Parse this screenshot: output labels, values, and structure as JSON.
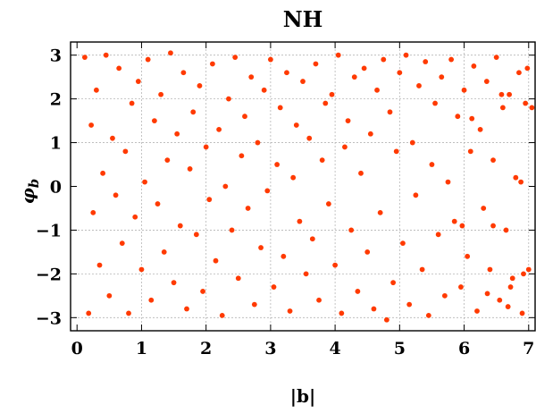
{
  "chart_data": {
    "type": "scatter",
    "title": "NH",
    "xlabel": "|b|",
    "ylabel": "φb",
    "ylabel_main": "φ",
    "ylabel_sub": "b",
    "xlim": [
      -0.1,
      7.1
    ],
    "ylim": [
      -3.3,
      3.3
    ],
    "xticks": [
      0,
      1,
      2,
      3,
      4,
      5,
      6,
      7
    ],
    "yticks": [
      -3,
      -2,
      -1,
      0,
      1,
      2,
      3
    ],
    "xtick_labels": [
      "0",
      "1",
      "2",
      "3",
      "4",
      "5",
      "6",
      "7"
    ],
    "ytick_labels": [
      "−3",
      "−2",
      "−1",
      "0",
      "1",
      "2",
      "3"
    ],
    "grid": true,
    "marker_color": "#ff3a00",
    "series": [
      {
        "points": [
          [
            0.12,
            2.95
          ],
          [
            0.18,
            -2.9
          ],
          [
            0.22,
            1.4
          ],
          [
            0.25,
            -0.6
          ],
          [
            0.3,
            2.2
          ],
          [
            0.35,
            -1.8
          ],
          [
            0.4,
            0.3
          ],
          [
            0.45,
            3.0
          ],
          [
            0.5,
            -2.5
          ],
          [
            0.55,
            1.1
          ],
          [
            0.6,
            -0.2
          ],
          [
            0.65,
            2.7
          ],
          [
            0.7,
            -1.3
          ],
          [
            0.75,
            0.8
          ],
          [
            0.8,
            -2.9
          ],
          [
            0.85,
            1.9
          ],
          [
            0.9,
            -0.7
          ],
          [
            0.95,
            2.4
          ],
          [
            1.0,
            -1.9
          ],
          [
            1.05,
            0.1
          ],
          [
            1.1,
            2.9
          ],
          [
            1.15,
            -2.6
          ],
          [
            1.2,
            1.5
          ],
          [
            1.25,
            -0.4
          ],
          [
            1.3,
            2.1
          ],
          [
            1.35,
            -1.5
          ],
          [
            1.4,
            0.6
          ],
          [
            1.45,
            3.05
          ],
          [
            1.5,
            -2.2
          ],
          [
            1.55,
            1.2
          ],
          [
            1.6,
            -0.9
          ],
          [
            1.65,
            2.6
          ],
          [
            1.7,
            -2.8
          ],
          [
            1.75,
            0.4
          ],
          [
            1.8,
            1.7
          ],
          [
            1.85,
            -1.1
          ],
          [
            1.9,
            2.3
          ],
          [
            1.95,
            -2.4
          ],
          [
            2.0,
            0.9
          ],
          [
            2.05,
            -0.3
          ],
          [
            2.1,
            2.8
          ],
          [
            2.15,
            -1.7
          ],
          [
            2.2,
            1.3
          ],
          [
            2.25,
            -2.95
          ],
          [
            2.3,
            0.0
          ],
          [
            2.35,
            2.0
          ],
          [
            2.4,
            -1.0
          ],
          [
            2.45,
            2.95
          ],
          [
            2.5,
            -2.1
          ],
          [
            2.55,
            0.7
          ],
          [
            2.6,
            1.6
          ],
          [
            2.65,
            -0.5
          ],
          [
            2.7,
            2.5
          ],
          [
            2.75,
            -2.7
          ],
          [
            2.8,
            1.0
          ],
          [
            2.85,
            -1.4
          ],
          [
            2.9,
            2.2
          ],
          [
            2.95,
            -0.1
          ],
          [
            3.0,
            2.9
          ],
          [
            3.05,
            -2.3
          ],
          [
            3.1,
            0.5
          ],
          [
            3.15,
            1.8
          ],
          [
            3.2,
            -1.6
          ],
          [
            3.25,
            2.6
          ],
          [
            3.3,
            -2.85
          ],
          [
            3.35,
            0.2
          ],
          [
            3.4,
            1.4
          ],
          [
            3.45,
            -0.8
          ],
          [
            3.5,
            2.4
          ],
          [
            3.55,
            -2.0
          ],
          [
            3.6,
            1.1
          ],
          [
            3.65,
            -1.2
          ],
          [
            3.7,
            2.8
          ],
          [
            3.75,
            -2.6
          ],
          [
            3.8,
            0.6
          ],
          [
            3.85,
            1.9
          ],
          [
            3.9,
            -0.4
          ],
          [
            3.95,
            2.1
          ],
          [
            4.0,
            -1.8
          ],
          [
            4.05,
            3.0
          ],
          [
            4.1,
            -2.9
          ],
          [
            4.15,
            0.9
          ],
          [
            4.2,
            1.5
          ],
          [
            4.25,
            -1.0
          ],
          [
            4.3,
            2.5
          ],
          [
            4.35,
            -2.4
          ],
          [
            4.4,
            0.3
          ],
          [
            4.45,
            2.7
          ],
          [
            4.5,
            -1.5
          ],
          [
            4.55,
            1.2
          ],
          [
            4.6,
            -2.8
          ],
          [
            4.65,
            2.2
          ],
          [
            4.7,
            -0.6
          ],
          [
            4.75,
            2.9
          ],
          [
            4.8,
            -3.05
          ],
          [
            4.85,
            1.7
          ],
          [
            4.9,
            -2.2
          ],
          [
            4.95,
            0.8
          ],
          [
            5.0,
            2.6
          ],
          [
            5.05,
            -1.3
          ],
          [
            5.1,
            3.0
          ],
          [
            5.15,
            -2.7
          ],
          [
            5.2,
            1.0
          ],
          [
            5.25,
            -0.2
          ],
          [
            5.3,
            2.3
          ],
          [
            5.35,
            -1.9
          ],
          [
            5.4,
            2.85
          ],
          [
            5.45,
            -2.95
          ],
          [
            5.5,
            0.5
          ],
          [
            5.55,
            1.9
          ],
          [
            5.6,
            -1.1
          ],
          [
            5.65,
            2.5
          ],
          [
            5.7,
            -2.5
          ],
          [
            5.75,
            0.1
          ],
          [
            5.8,
            2.9
          ],
          [
            5.85,
            -0.8
          ],
          [
            5.9,
            1.6
          ],
          [
            5.95,
            -2.3
          ],
          [
            6.0,
            2.2
          ],
          [
            6.05,
            -1.6
          ],
          [
            6.1,
            0.8
          ],
          [
            6.15,
            2.75
          ],
          [
            6.2,
            -2.85
          ],
          [
            6.25,
            1.3
          ],
          [
            6.3,
            -0.5
          ],
          [
            6.35,
            2.4
          ],
          [
            6.4,
            -1.9
          ],
          [
            6.45,
            0.6
          ],
          [
            6.5,
            2.95
          ],
          [
            6.55,
            -2.6
          ],
          [
            6.6,
            1.8
          ],
          [
            6.65,
            -1.0
          ],
          [
            6.7,
            2.1
          ],
          [
            6.75,
            -2.1
          ],
          [
            6.8,
            0.2
          ],
          [
            6.85,
            2.6
          ],
          [
            6.9,
            -2.9
          ],
          [
            6.95,
            1.9
          ],
          [
            7.0,
            -1.9
          ],
          [
            7.05,
            1.8
          ],
          [
            6.98,
            2.7
          ],
          [
            6.45,
            -0.9
          ],
          [
            6.72,
            -2.3
          ],
          [
            6.58,
            2.1
          ],
          [
            6.92,
            -2.0
          ],
          [
            6.68,
            -2.75
          ],
          [
            5.97,
            -0.9
          ],
          [
            6.36,
            -2.45
          ],
          [
            6.12,
            1.55
          ],
          [
            6.88,
            0.1
          ]
        ]
      }
    ]
  }
}
